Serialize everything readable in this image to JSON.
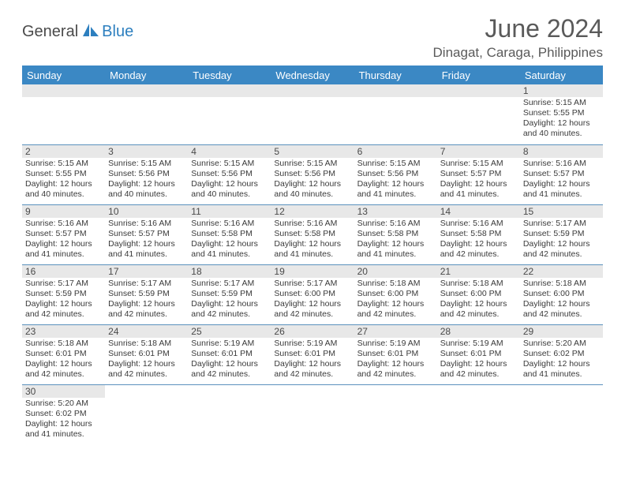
{
  "logo": {
    "text1": "General",
    "text2": "Blue"
  },
  "title": "June 2024",
  "location": "Dinagat, Caraga, Philippines",
  "colors": {
    "header_bg": "#3b88c4",
    "header_text": "#ffffff",
    "row_divider": "#5b91bd",
    "daynum_bg": "#e8e8e8",
    "text": "#3a3a3a",
    "title_text": "#5a5a5a",
    "logo_gray": "#4a4a4a",
    "logo_blue": "#2d7fbf"
  },
  "weekdays": [
    "Sunday",
    "Monday",
    "Tuesday",
    "Wednesday",
    "Thursday",
    "Friday",
    "Saturday"
  ],
  "weeks": [
    [
      null,
      null,
      null,
      null,
      null,
      null,
      {
        "n": "1",
        "sr": "5:15 AM",
        "ss": "5:55 PM",
        "dl": "12 hours and 40 minutes."
      }
    ],
    [
      {
        "n": "2",
        "sr": "5:15 AM",
        "ss": "5:55 PM",
        "dl": "12 hours and 40 minutes."
      },
      {
        "n": "3",
        "sr": "5:15 AM",
        "ss": "5:56 PM",
        "dl": "12 hours and 40 minutes."
      },
      {
        "n": "4",
        "sr": "5:15 AM",
        "ss": "5:56 PM",
        "dl": "12 hours and 40 minutes."
      },
      {
        "n": "5",
        "sr": "5:15 AM",
        "ss": "5:56 PM",
        "dl": "12 hours and 40 minutes."
      },
      {
        "n": "6",
        "sr": "5:15 AM",
        "ss": "5:56 PM",
        "dl": "12 hours and 41 minutes."
      },
      {
        "n": "7",
        "sr": "5:15 AM",
        "ss": "5:57 PM",
        "dl": "12 hours and 41 minutes."
      },
      {
        "n": "8",
        "sr": "5:16 AM",
        "ss": "5:57 PM",
        "dl": "12 hours and 41 minutes."
      }
    ],
    [
      {
        "n": "9",
        "sr": "5:16 AM",
        "ss": "5:57 PM",
        "dl": "12 hours and 41 minutes."
      },
      {
        "n": "10",
        "sr": "5:16 AM",
        "ss": "5:57 PM",
        "dl": "12 hours and 41 minutes."
      },
      {
        "n": "11",
        "sr": "5:16 AM",
        "ss": "5:58 PM",
        "dl": "12 hours and 41 minutes."
      },
      {
        "n": "12",
        "sr": "5:16 AM",
        "ss": "5:58 PM",
        "dl": "12 hours and 41 minutes."
      },
      {
        "n": "13",
        "sr": "5:16 AM",
        "ss": "5:58 PM",
        "dl": "12 hours and 41 minutes."
      },
      {
        "n": "14",
        "sr": "5:16 AM",
        "ss": "5:58 PM",
        "dl": "12 hours and 42 minutes."
      },
      {
        "n": "15",
        "sr": "5:17 AM",
        "ss": "5:59 PM",
        "dl": "12 hours and 42 minutes."
      }
    ],
    [
      {
        "n": "16",
        "sr": "5:17 AM",
        "ss": "5:59 PM",
        "dl": "12 hours and 42 minutes."
      },
      {
        "n": "17",
        "sr": "5:17 AM",
        "ss": "5:59 PM",
        "dl": "12 hours and 42 minutes."
      },
      {
        "n": "18",
        "sr": "5:17 AM",
        "ss": "5:59 PM",
        "dl": "12 hours and 42 minutes."
      },
      {
        "n": "19",
        "sr": "5:17 AM",
        "ss": "6:00 PM",
        "dl": "12 hours and 42 minutes."
      },
      {
        "n": "20",
        "sr": "5:18 AM",
        "ss": "6:00 PM",
        "dl": "12 hours and 42 minutes."
      },
      {
        "n": "21",
        "sr": "5:18 AM",
        "ss": "6:00 PM",
        "dl": "12 hours and 42 minutes."
      },
      {
        "n": "22",
        "sr": "5:18 AM",
        "ss": "6:00 PM",
        "dl": "12 hours and 42 minutes."
      }
    ],
    [
      {
        "n": "23",
        "sr": "5:18 AM",
        "ss": "6:01 PM",
        "dl": "12 hours and 42 minutes."
      },
      {
        "n": "24",
        "sr": "5:18 AM",
        "ss": "6:01 PM",
        "dl": "12 hours and 42 minutes."
      },
      {
        "n": "25",
        "sr": "5:19 AM",
        "ss": "6:01 PM",
        "dl": "12 hours and 42 minutes."
      },
      {
        "n": "26",
        "sr": "5:19 AM",
        "ss": "6:01 PM",
        "dl": "12 hours and 42 minutes."
      },
      {
        "n": "27",
        "sr": "5:19 AM",
        "ss": "6:01 PM",
        "dl": "12 hours and 42 minutes."
      },
      {
        "n": "28",
        "sr": "5:19 AM",
        "ss": "6:01 PM",
        "dl": "12 hours and 42 minutes."
      },
      {
        "n": "29",
        "sr": "5:20 AM",
        "ss": "6:02 PM",
        "dl": "12 hours and 41 minutes."
      }
    ],
    [
      {
        "n": "30",
        "sr": "5:20 AM",
        "ss": "6:02 PM",
        "dl": "12 hours and 41 minutes."
      },
      null,
      null,
      null,
      null,
      null,
      null
    ]
  ],
  "labels": {
    "sunrise": "Sunrise:",
    "sunset": "Sunset:",
    "daylight": "Daylight:"
  }
}
